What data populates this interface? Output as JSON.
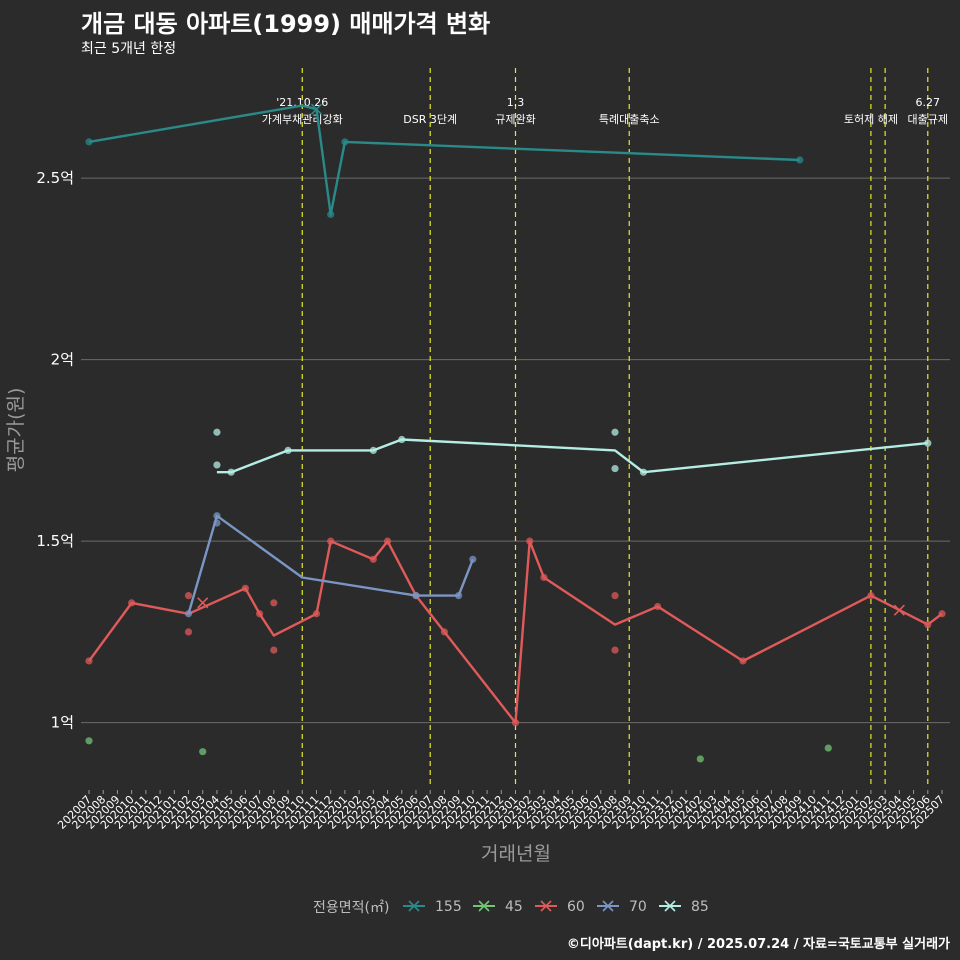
{
  "title": "개금 대동 아파트(1999) 매매가격 변화",
  "subtitle": "최근 5개년 한정",
  "caption": "©디아파트(dapt.kr) / 2025.07.24 / 자료=국토교통부 실거래가",
  "chart_data": {
    "type": "line",
    "xlabel": "거래년월",
    "ylabel": "평균가(원)",
    "ylim": [
      0.82,
      2.82
    ],
    "y_unit": "억",
    "yticks": [
      {
        "value": 1.0,
        "label": "1억"
      },
      {
        "value": 1.5,
        "label": "1.5억"
      },
      {
        "value": 2.0,
        "label": "2억"
      },
      {
        "value": 2.5,
        "label": "2.5억"
      }
    ],
    "x_categories": [
      "202007",
      "202008",
      "202009",
      "202010",
      "202011",
      "202012",
      "202101",
      "202102",
      "202103",
      "202104",
      "202105",
      "202106",
      "202107",
      "202108",
      "202109",
      "202110",
      "202111",
      "202112",
      "202201",
      "202202",
      "202203",
      "202204",
      "202205",
      "202206",
      "202207",
      "202208",
      "202209",
      "202210",
      "202211",
      "202212",
      "202301",
      "202302",
      "202303",
      "202304",
      "202305",
      "202306",
      "202307",
      "202308",
      "202309",
      "202310",
      "202311",
      "202312",
      "202401",
      "202402",
      "202403",
      "202404",
      "202405",
      "202406",
      "202407",
      "202408",
      "202409",
      "202410",
      "202411",
      "202412",
      "202501",
      "202502",
      "202503",
      "202504",
      "202505",
      "202506",
      "202507"
    ],
    "grid": true,
    "legend_title": "전용면적(㎡)",
    "legend_position": "bottom",
    "series": [
      {
        "name": "155",
        "color": "#2a8a8a",
        "line": [
          [
            "202007",
            2.6
          ],
          [
            "202110",
            2.7
          ],
          [
            "202111",
            2.69
          ],
          [
            "202112",
            2.4
          ],
          [
            "202201",
            2.6
          ],
          [
            "202409",
            2.55
          ]
        ],
        "points": [
          [
            "202007",
            2.6
          ],
          [
            "202112",
            2.4
          ],
          [
            "202201",
            2.6
          ],
          [
            "202409",
            2.55
          ]
        ],
        "cross": [
          [
            "202111",
            2.69
          ]
        ]
      },
      {
        "name": "45",
        "color": "#74c476",
        "line": [],
        "points": [
          [
            "202007",
            0.95
          ],
          [
            "202103",
            0.92
          ],
          [
            "202402",
            0.9
          ],
          [
            "202411",
            0.93
          ]
        ],
        "cross": []
      },
      {
        "name": "60",
        "color": "#e05a5a",
        "line": [
          [
            "202007",
            1.17
          ],
          [
            "202010",
            1.33
          ],
          [
            "202102",
            1.3
          ],
          [
            "202106",
            1.37
          ],
          [
            "202107",
            1.3
          ],
          [
            "202108",
            1.24
          ],
          [
            "202111",
            1.3
          ],
          [
            "202112",
            1.5
          ],
          [
            "202203",
            1.45
          ],
          [
            "202204",
            1.5
          ],
          [
            "202206",
            1.35
          ],
          [
            "202208",
            1.25
          ],
          [
            "202301",
            1.0
          ],
          [
            "202302",
            1.5
          ],
          [
            "202303",
            1.4
          ],
          [
            "202308",
            1.27
          ],
          [
            "202311",
            1.32
          ],
          [
            "202405",
            1.17
          ],
          [
            "202502",
            1.35
          ],
          [
            "202506",
            1.27
          ],
          [
            "202507",
            1.3
          ]
        ],
        "points": [
          [
            "202007",
            1.17
          ],
          [
            "202010",
            1.33
          ],
          [
            "202102",
            1.35
          ],
          [
            "202102",
            1.25
          ],
          [
            "202106",
            1.37
          ],
          [
            "202107",
            1.3
          ],
          [
            "202108",
            1.33
          ],
          [
            "202108",
            1.2
          ],
          [
            "202111",
            1.3
          ],
          [
            "202112",
            1.5
          ],
          [
            "202203",
            1.45
          ],
          [
            "202204",
            1.5
          ],
          [
            "202206",
            1.35
          ],
          [
            "202208",
            1.25
          ],
          [
            "202301",
            1.0
          ],
          [
            "202302",
            1.5
          ],
          [
            "202303",
            1.4
          ],
          [
            "202308",
            1.35
          ],
          [
            "202308",
            1.2
          ],
          [
            "202311",
            1.32
          ],
          [
            "202405",
            1.17
          ],
          [
            "202502",
            1.35
          ],
          [
            "202506",
            1.27
          ],
          [
            "202507",
            1.3
          ]
        ],
        "cross": [
          [
            "202103",
            1.33
          ],
          [
            "202504",
            1.31
          ]
        ]
      },
      {
        "name": "70",
        "color": "#7b96c4",
        "line": [
          [
            "202102",
            1.3
          ],
          [
            "202104",
            1.57
          ],
          [
            "202110",
            1.4
          ],
          [
            "202206",
            1.35
          ],
          [
            "202209",
            1.35
          ],
          [
            "202210",
            1.45
          ]
        ],
        "points": [
          [
            "202102",
            1.3
          ],
          [
            "202104",
            1.57
          ],
          [
            "202104",
            1.55
          ],
          [
            "202206",
            1.35
          ],
          [
            "202209",
            1.35
          ],
          [
            "202210",
            1.45
          ]
        ],
        "cross": []
      },
      {
        "name": "85",
        "color": "#b4ede4",
        "line": [
          [
            "202104",
            1.69
          ],
          [
            "202105",
            1.69
          ],
          [
            "202109",
            1.75
          ],
          [
            "202203",
            1.75
          ],
          [
            "202205",
            1.78
          ],
          [
            "202308",
            1.75
          ],
          [
            "202310",
            1.69
          ],
          [
            "202506",
            1.77
          ]
        ],
        "points": [
          [
            "202104",
            1.8
          ],
          [
            "202104",
            1.71
          ],
          [
            "202105",
            1.69
          ],
          [
            "202109",
            1.75
          ],
          [
            "202203",
            1.75
          ],
          [
            "202205",
            1.78
          ],
          [
            "202308",
            1.8
          ],
          [
            "202308",
            1.7
          ],
          [
            "202310",
            1.69
          ],
          [
            "202506",
            1.77
          ]
        ],
        "cross": []
      }
    ],
    "events": [
      {
        "month": "202110",
        "lines": [
          "'21.10.26",
          "가계부채관리강화"
        ]
      },
      {
        "month": "202207",
        "lines": [
          "DSR 3단계"
        ]
      },
      {
        "month": "202301",
        "lines": [
          "1.3",
          "규제완화"
        ]
      },
      {
        "month": "202309",
        "lines": [
          "특례대출축소"
        ]
      },
      {
        "month": "202502",
        "lines": [
          "토허제 해제"
        ]
      },
      {
        "month": "202503",
        "lines": []
      },
      {
        "month": "202506",
        "lines": [
          "6.27",
          "대출규제"
        ]
      }
    ]
  }
}
